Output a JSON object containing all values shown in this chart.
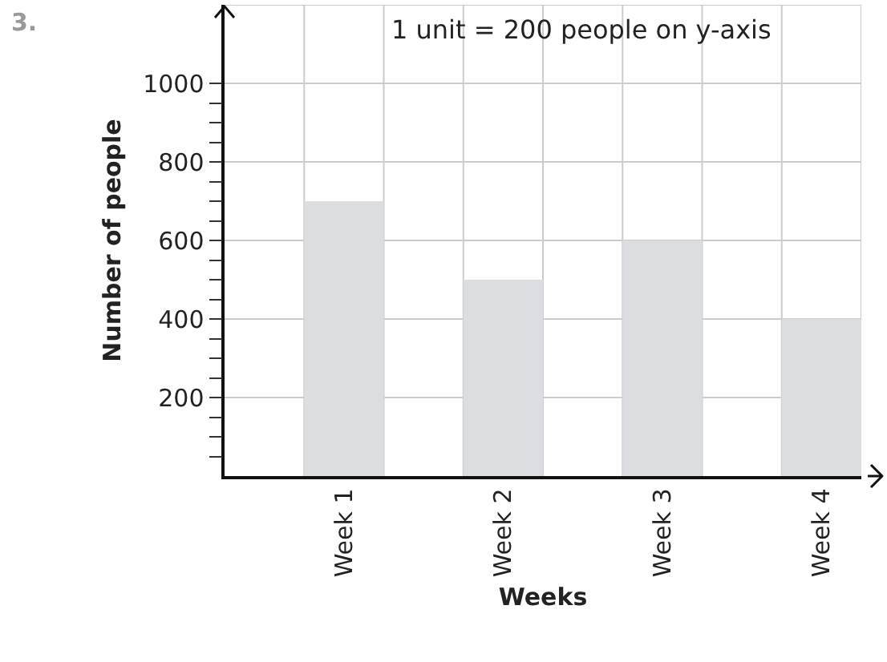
{
  "chart_data": {
    "type": "bar",
    "xlabel": "Weeks",
    "ylabel": "Number of people",
    "categories": [
      "Week 1",
      "Week 2",
      "Week 3",
      "Week 4"
    ],
    "values": [
      700,
      500,
      600,
      400
    ],
    "color": "#dcdde0",
    "ylim": [
      0,
      1200
    ],
    "yticks": [
      {
        "value": 50,
        "label": null
      },
      {
        "value": 100,
        "label": null
      },
      {
        "value": 150,
        "label": null
      },
      200,
      {
        "value": 250,
        "label": null
      },
      {
        "value": 300,
        "label": null
      },
      {
        "value": 350,
        "label": null
      },
      400,
      {
        "value": 450,
        "label": null
      },
      {
        "value": 500,
        "label": null
      },
      {
        "value": 550,
        "label": null
      },
      600,
      {
        "value": 650,
        "label": null
      },
      {
        "value": 700,
        "label": null
      },
      {
        "value": 750,
        "label": null
      },
      800,
      {
        "value": 850,
        "label": null
      },
      {
        "value": 900,
        "label": null
      },
      {
        "value": 950,
        "label": null
      },
      1000
    ],
    "grid": true,
    "annotations": [
      "3.",
      "1 unit = 200 people on y-axis"
    ]
  }
}
